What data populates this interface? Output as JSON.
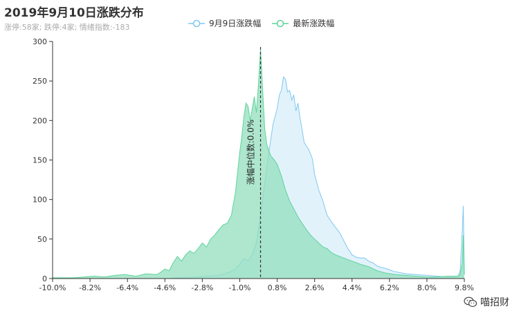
{
  "title": "2019年9月10日涨跌分布",
  "subtitle": "涨停:58家; 跌停:4家; 情绪指数:-183",
  "legend": [
    {
      "name": "9月9日涨跌幅",
      "color": "#7ec8ee",
      "fill": "#dff1fb"
    },
    {
      "name": "最新涨跌幅",
      "color": "#5bd49c",
      "fill": "#93dfbd"
    }
  ],
  "watermark": {
    "text": "喵招财",
    "icon": "wechat-icon"
  },
  "chart_data": {
    "type": "area",
    "x_tick_labels": [
      "-10.0%",
      "-8.2%",
      "-6.4%",
      "-4.6%",
      "-2.8%",
      "-1.0%",
      "0.8%",
      "2.6%",
      "4.4%",
      "6.2%",
      "8.0%",
      "9.8%"
    ],
    "xlim": [
      -10.0,
      9.8
    ],
    "y_ticks": [
      0,
      50,
      100,
      150,
      200,
      250,
      300
    ],
    "ylim": [
      0,
      300
    ],
    "grid": false,
    "legend_position": "top",
    "median_line": {
      "x": 0.0,
      "label": "涨幅中位数:0.0%"
    },
    "series": [
      {
        "name": "9月9日涨跌幅",
        "x": [
          -10.0,
          -9.5,
          -9.0,
          -8.5,
          -8.0,
          -7.5,
          -7.0,
          -6.5,
          -6.0,
          -5.5,
          -5.0,
          -4.5,
          -4.0,
          -3.5,
          -3.0,
          -2.5,
          -2.0,
          -1.5,
          -1.2,
          -1.0,
          -0.8,
          -0.6,
          -0.4,
          -0.2,
          0.0,
          0.2,
          0.4,
          0.6,
          0.8,
          0.9,
          1.0,
          1.1,
          1.2,
          1.3,
          1.4,
          1.5,
          1.6,
          1.7,
          1.8,
          1.9,
          2.0,
          2.1,
          2.2,
          2.3,
          2.4,
          2.5,
          2.6,
          2.8,
          3.0,
          3.2,
          3.4,
          3.6,
          3.8,
          4.0,
          4.2,
          4.4,
          4.6,
          4.8,
          5.0,
          5.2,
          5.4,
          5.6,
          5.8,
          6.0,
          6.2,
          6.4,
          6.6,
          6.8,
          7.0,
          7.5,
          8.0,
          8.5,
          9.0,
          9.3,
          9.5,
          9.6,
          9.7,
          9.75,
          9.8
        ],
        "values": [
          0,
          0,
          0,
          0,
          0,
          0,
          0,
          0,
          0,
          0,
          0,
          0,
          1,
          1,
          2,
          3,
          4,
          8,
          12,
          18,
          25,
          22,
          30,
          45,
          80,
          120,
          160,
          195,
          215,
          232,
          238,
          255,
          252,
          236,
          238,
          226,
          232,
          212,
          222,
          203,
          188,
          172,
          168,
          164,
          158,
          151,
          132,
          112,
          98,
          80,
          72,
          65,
          58,
          48,
          38,
          30,
          27,
          26,
          26,
          22,
          20,
          16,
          14,
          13,
          11,
          9,
          8,
          7,
          6,
          5,
          4,
          3,
          2,
          2,
          3,
          10,
          60,
          92,
          5
        ]
      },
      {
        "name": "最新涨跌幅",
        "x": [
          -10.0,
          -9.5,
          -9.0,
          -8.5,
          -8.0,
          -7.5,
          -7.0,
          -6.5,
          -6.0,
          -5.5,
          -5.0,
          -4.8,
          -4.6,
          -4.4,
          -4.2,
          -4.0,
          -3.8,
          -3.6,
          -3.4,
          -3.2,
          -3.0,
          -2.8,
          -2.6,
          -2.4,
          -2.2,
          -2.0,
          -1.8,
          -1.6,
          -1.4,
          -1.2,
          -1.0,
          -0.9,
          -0.8,
          -0.7,
          -0.6,
          -0.5,
          -0.4,
          -0.3,
          -0.2,
          -0.1,
          0.0,
          0.1,
          0.2,
          0.3,
          0.4,
          0.5,
          0.6,
          0.8,
          1.0,
          1.2,
          1.4,
          1.6,
          1.8,
          2.0,
          2.2,
          2.4,
          2.6,
          2.8,
          3.0,
          3.2,
          3.4,
          3.6,
          3.8,
          4.0,
          4.4,
          4.8,
          5.2,
          5.6,
          6.0,
          6.5,
          7.0,
          7.5,
          8.0,
          8.5,
          9.0,
          9.3,
          9.5,
          9.6,
          9.7,
          9.75,
          9.8
        ],
        "values": [
          1,
          1,
          1,
          2,
          3,
          2,
          4,
          5,
          3,
          6,
          5,
          8,
          12,
          10,
          20,
          28,
          22,
          30,
          35,
          32,
          38,
          45,
          40,
          50,
          55,
          62,
          68,
          70,
          80,
          110,
          160,
          180,
          205,
          222,
          218,
          200,
          215,
          230,
          210,
          245,
          290,
          240,
          190,
          170,
          162,
          155,
          152,
          145,
          130,
          112,
          98,
          88,
          78,
          70,
          62,
          55,
          50,
          45,
          40,
          38,
          33,
          30,
          28,
          26,
          22,
          18,
          15,
          10,
          7,
          5,
          4,
          3,
          2,
          2,
          3,
          3,
          3,
          5,
          20,
          55,
          5
        ]
      }
    ]
  }
}
